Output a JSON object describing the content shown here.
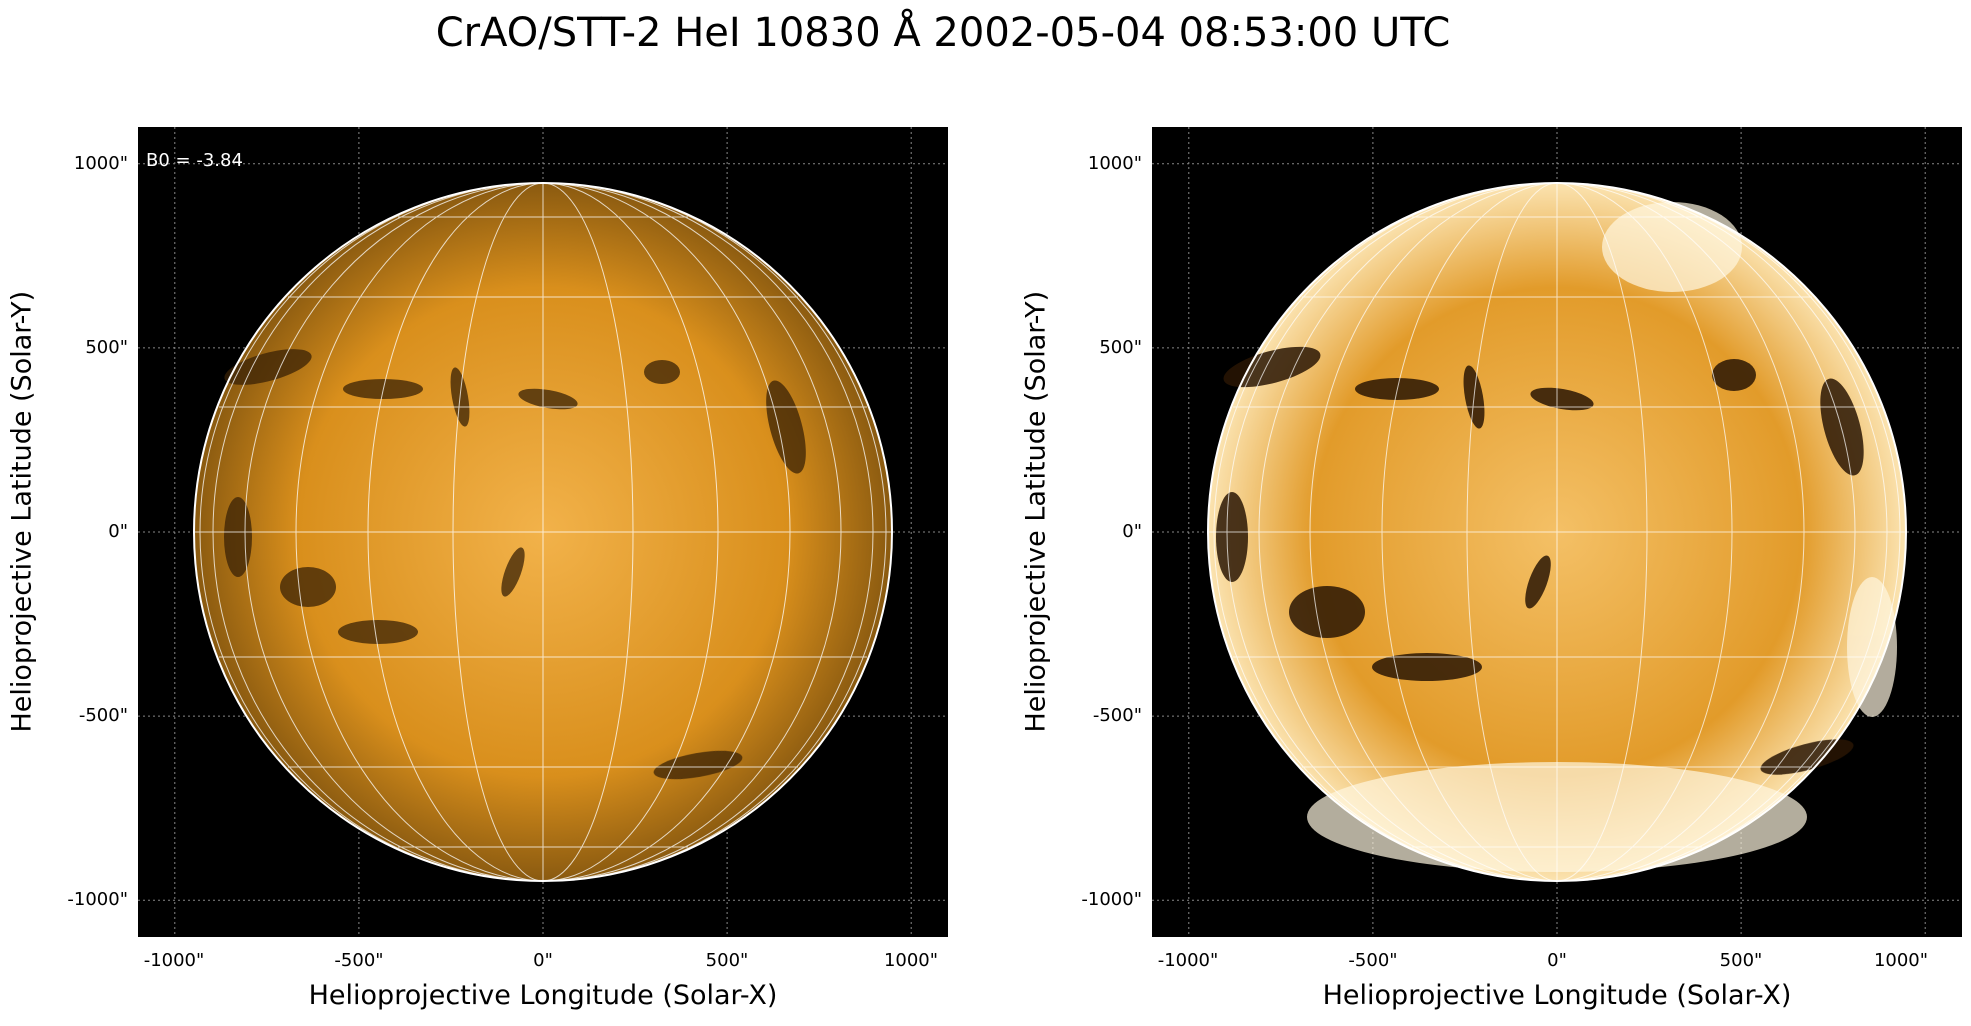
{
  "figure": {
    "title": "CrAO/STT-2 HeI 10830 Å 2002-05-04 08:53:00 UTC"
  },
  "axes": {
    "x_label": "Helioprojective Longitude (Solar-X)",
    "y_label": "Helioprojective Latitude (Solar-Y)",
    "x_ticks": [
      "-1000\"",
      "-500\"",
      "0\"",
      "500\"",
      "1000\""
    ],
    "y_ticks": [
      "1000\"",
      "500\"",
      "0\"",
      "-500\"",
      "-1000\""
    ],
    "x_range_arcsec": [
      -1100,
      1100
    ],
    "y_range_arcsec": [
      -1100,
      1100
    ]
  },
  "panels": [
    {
      "name": "original",
      "annotation": "B0 = -3.84",
      "contrast": "normal"
    },
    {
      "name": "enhanced",
      "annotation": "",
      "contrast": "enhanced"
    }
  ],
  "colors": {
    "disk_base": "#d98a10",
    "disk_bright": "#f7c76a",
    "grid_line": "#ffffff",
    "background": "#000000"
  }
}
